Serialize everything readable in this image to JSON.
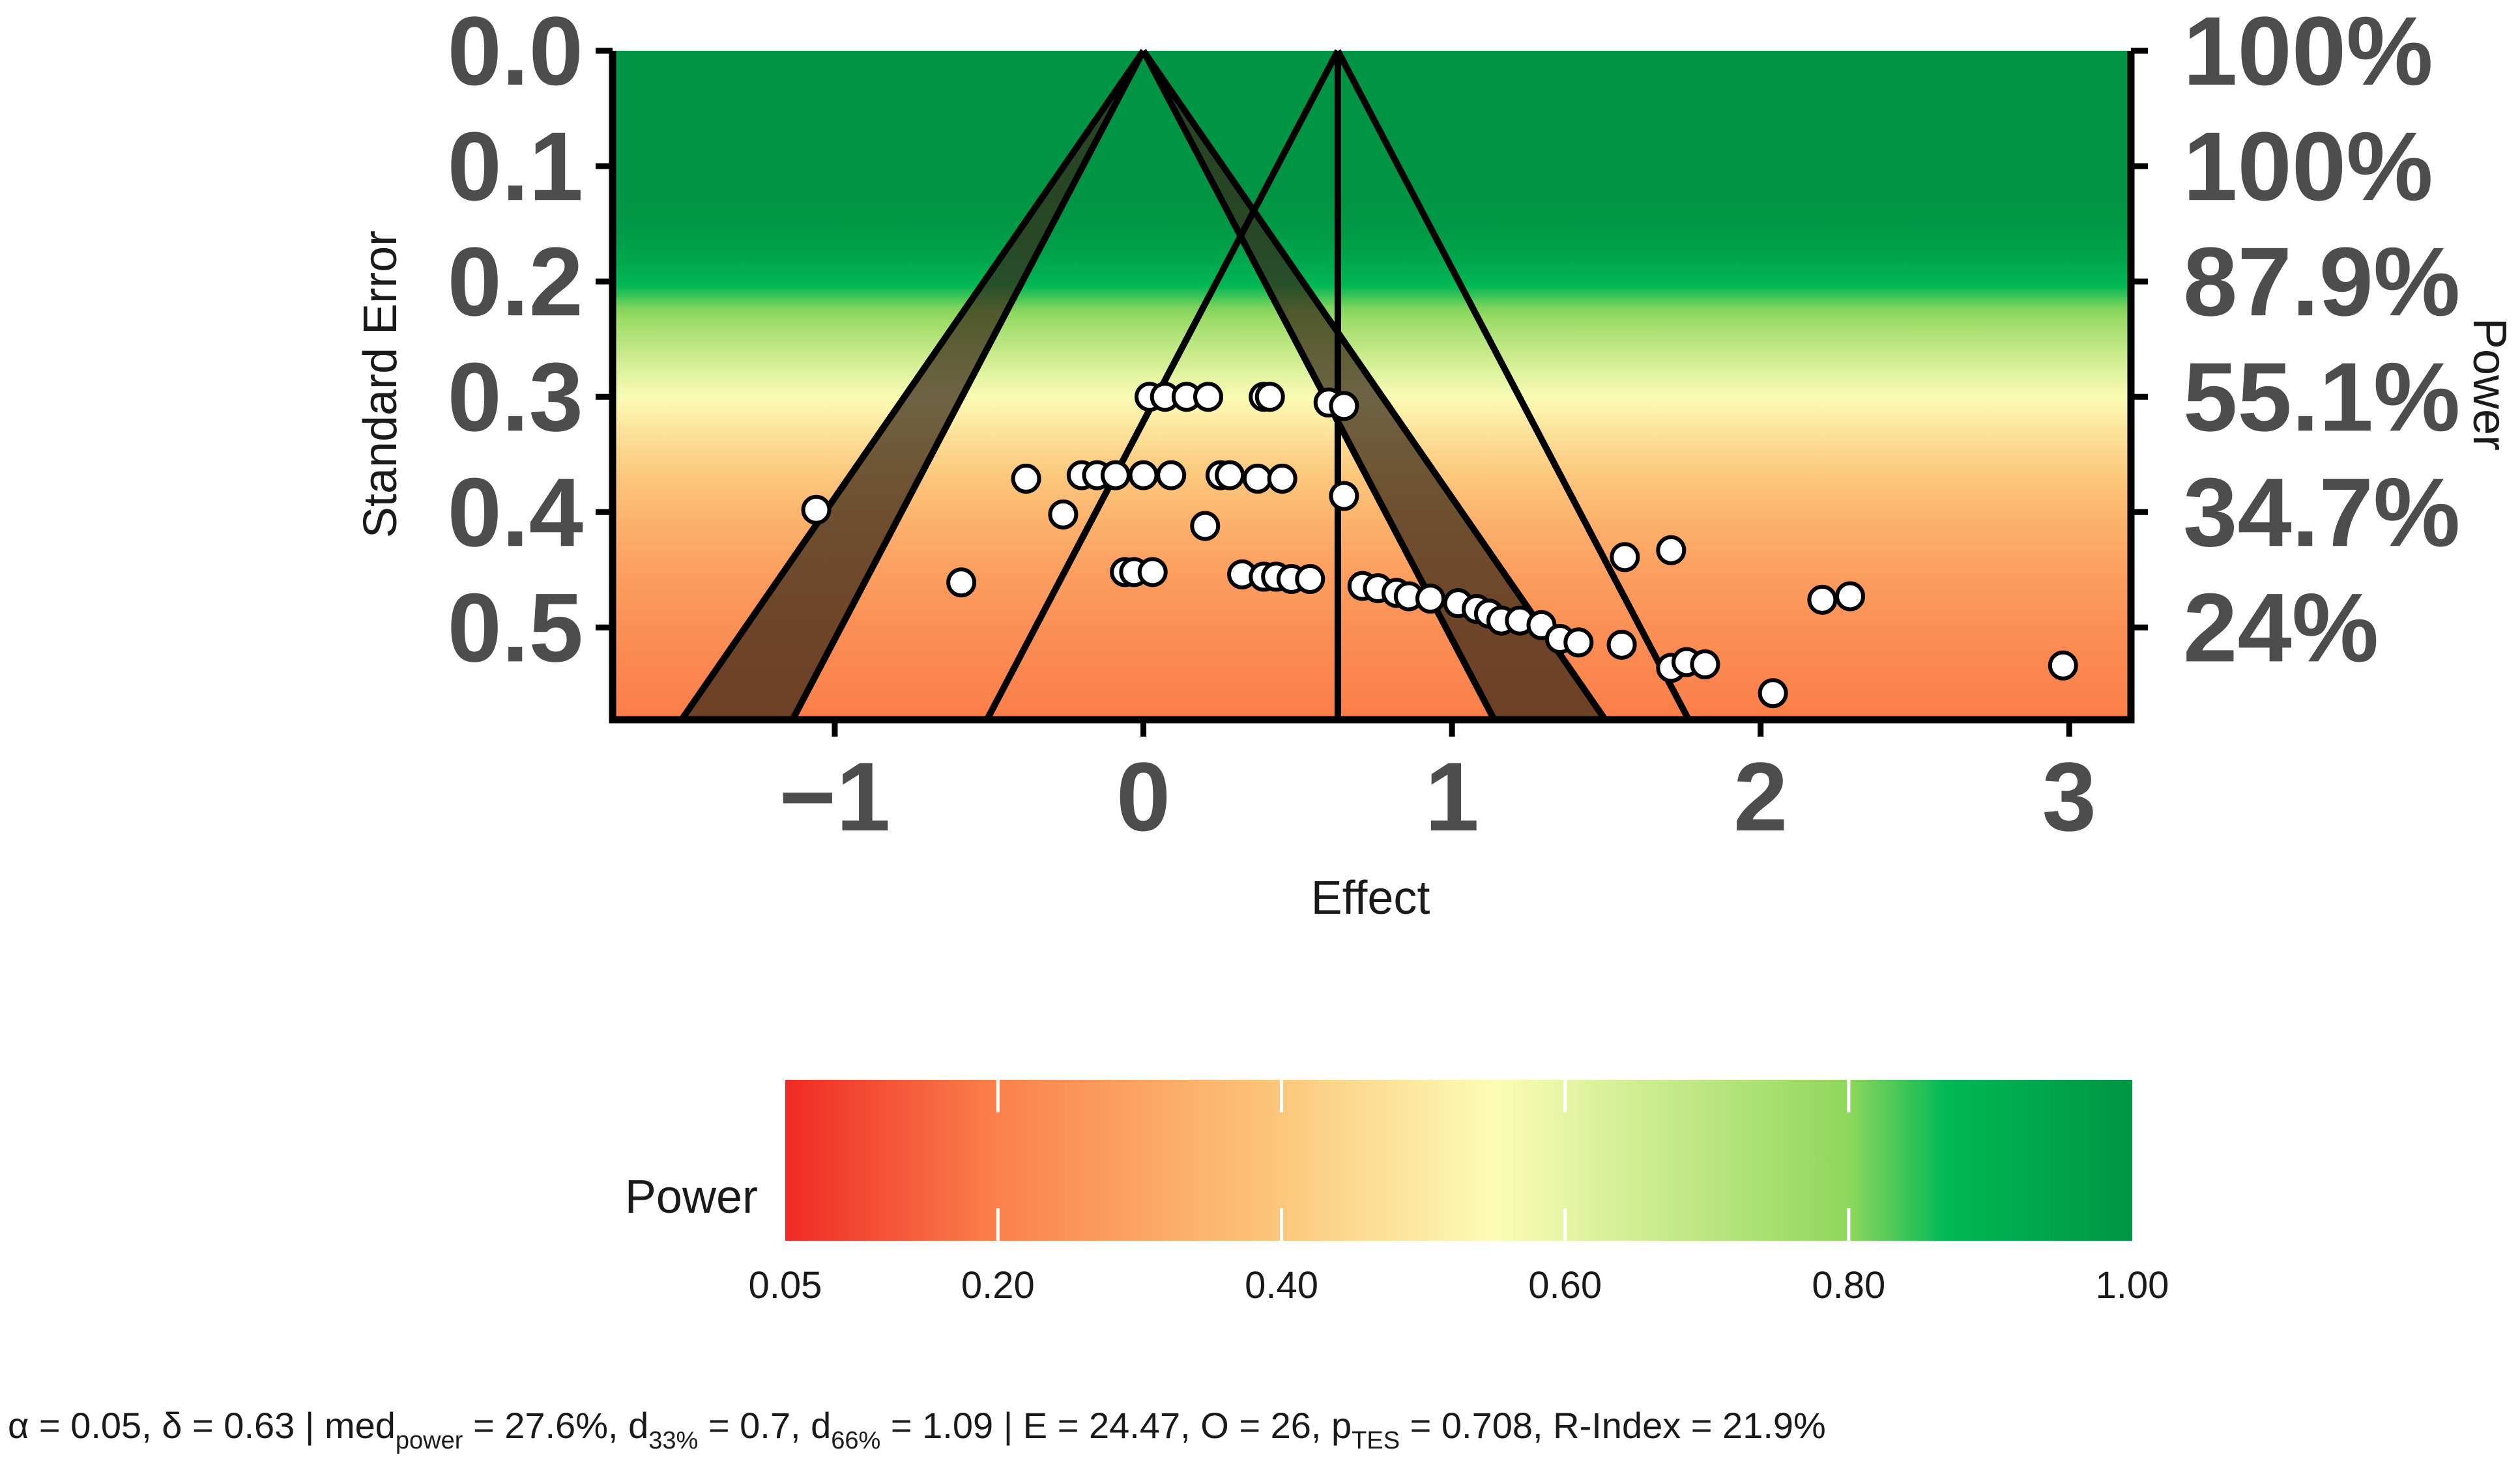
{
  "chart_data": {
    "type": "scatter",
    "title": "",
    "xlabel": "Effect",
    "ylabel": "Standard Error",
    "y2label": "Power",
    "xlim": [
      -1.72,
      3.2
    ],
    "ylim": [
      0,
      0.58
    ],
    "x_ticks": [
      -1,
      0,
      1,
      2,
      3
    ],
    "x_tick_labels": [
      "−1",
      "0",
      "1",
      "2",
      "3"
    ],
    "y_ticks": [
      0.0,
      0.1,
      0.2,
      0.3,
      0.4,
      0.5
    ],
    "y_tick_labels": [
      "0.0",
      "0.1",
      "0.2",
      "0.3",
      "0.4",
      "0.5"
    ],
    "power_tick_labels": [
      "100%",
      "100%",
      "87.9%",
      "55.1%",
      "34.7%",
      "24%"
    ],
    "null_effect": 0,
    "assumed_effect": 0.63,
    "z_crit": 1.96,
    "z_sig": 2.58,
    "points": [
      [
        -1.06,
        0.398
      ],
      [
        -0.59,
        0.461
      ],
      [
        -0.38,
        0.371
      ],
      [
        -0.26,
        0.402
      ],
      [
        -0.2,
        0.368
      ],
      [
        -0.15,
        0.368
      ],
      [
        -0.09,
        0.368
      ],
      [
        0.0,
        0.368
      ],
      [
        0.09,
        0.368
      ],
      [
        0.25,
        0.368
      ],
      [
        0.28,
        0.368
      ],
      [
        0.37,
        0.371
      ],
      [
        0.45,
        0.371
      ],
      [
        0.02,
        0.3
      ],
      [
        0.07,
        0.3
      ],
      [
        0.14,
        0.3
      ],
      [
        0.21,
        0.3
      ],
      [
        0.39,
        0.3
      ],
      [
        0.41,
        0.3
      ],
      [
        0.6,
        0.305
      ],
      [
        0.65,
        0.308
      ],
      [
        0.65,
        0.386
      ],
      [
        0.2,
        0.412
      ],
      [
        -0.06,
        0.452
      ],
      [
        -0.03,
        0.452
      ],
      [
        0.03,
        0.452
      ],
      [
        0.32,
        0.454
      ],
      [
        0.39,
        0.456
      ],
      [
        0.43,
        0.456
      ],
      [
        0.48,
        0.458
      ],
      [
        0.54,
        0.458
      ],
      [
        0.71,
        0.464
      ],
      [
        0.76,
        0.466
      ],
      [
        0.82,
        0.47
      ],
      [
        0.86,
        0.473
      ],
      [
        0.93,
        0.475
      ],
      [
        1.02,
        0.479
      ],
      [
        1.08,
        0.484
      ],
      [
        1.12,
        0.488
      ],
      [
        1.16,
        0.494
      ],
      [
        1.22,
        0.494
      ],
      [
        1.29,
        0.498
      ],
      [
        1.35,
        0.51
      ],
      [
        1.41,
        0.513
      ],
      [
        1.55,
        0.515
      ],
      [
        1.56,
        0.439
      ],
      [
        1.71,
        0.433
      ],
      [
        1.71,
        0.535
      ],
      [
        1.76,
        0.53
      ],
      [
        1.82,
        0.532
      ],
      [
        2.04,
        0.557
      ],
      [
        2.2,
        0.476
      ],
      [
        2.29,
        0.473
      ],
      [
        2.98,
        0.533
      ]
    ],
    "power_gradient": [
      {
        "power": 0.05,
        "color": "#ef2a24"
      },
      {
        "power": 0.2,
        "color": "#fb814c"
      },
      {
        "power": 0.4,
        "color": "#fcc77c"
      },
      {
        "power": 0.55,
        "color": "#fcfcb6"
      },
      {
        "power": 0.8,
        "color": "#8fd75d"
      },
      {
        "power": 0.87,
        "color": "#00b855"
      },
      {
        "power": 1.0,
        "color": "#009544"
      }
    ],
    "legend": {
      "title": "Power",
      "ticks": [
        0.05,
        0.2,
        0.4,
        0.6,
        0.8,
        1.0
      ],
      "tick_labels": [
        "0.05",
        "0.20",
        "0.40",
        "0.60",
        "0.80",
        "1.00"
      ]
    }
  },
  "footer": {
    "alpha_delta": "α = 0.05, δ = 0.63 | med",
    "med_sub": "power",
    "med_val": " = 27.6%, d",
    "d33_sub": "33%",
    "d33_val": " = 0.7, d",
    "d66_sub": "66%",
    "d66_val": " = 1.09 | E = 24.47, O = 26, p",
    "ptes_sub": "TES",
    "ptes_val": " = 0.708, R-Index = 21.9%"
  }
}
